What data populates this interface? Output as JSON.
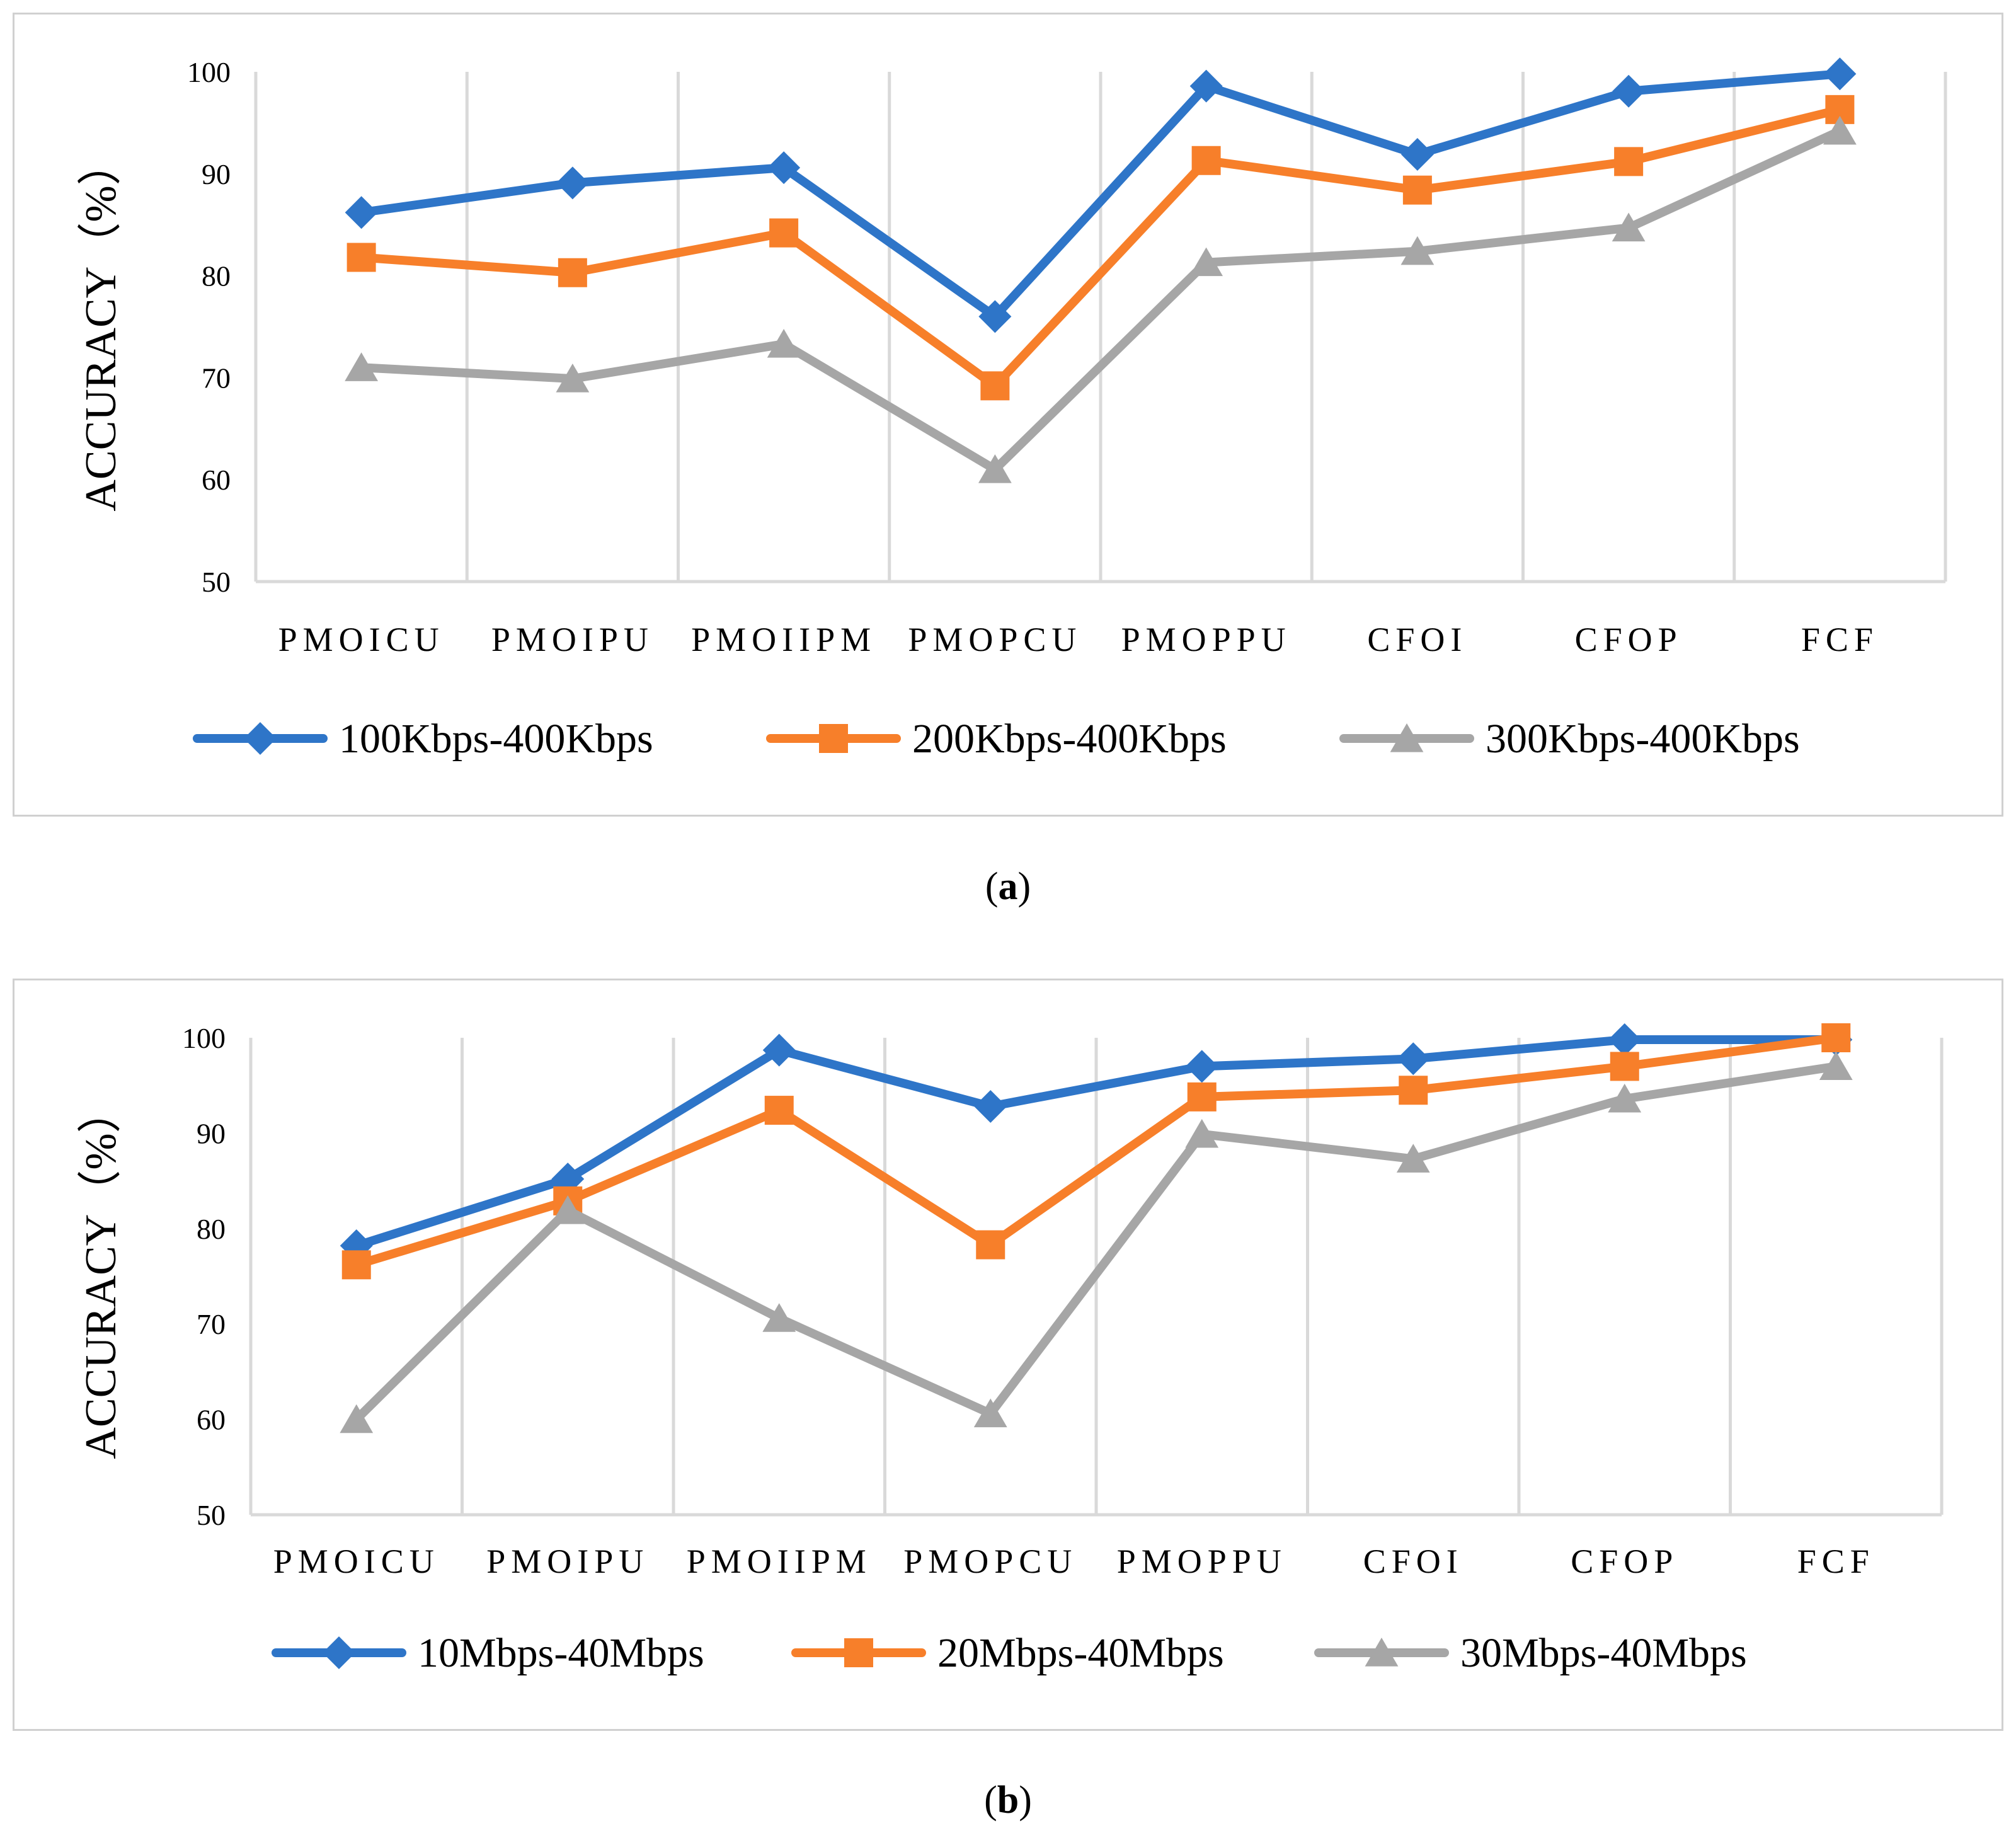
{
  "colors": {
    "series1": "#2e75c8",
    "series2": "#f77f2a",
    "series3": "#a6a6a6",
    "grid": "#d9d9d9",
    "text": "#000000"
  },
  "captions": {
    "a_letter": "a",
    "b_letter": "b"
  },
  "chart_data": [
    {
      "type": "line",
      "ylabel": "ACCURACY（%）",
      "ylim": [
        50,
        100
      ],
      "yticks": [
        "50",
        "60",
        "70",
        "80",
        "90",
        "100"
      ],
      "grid": "vertical",
      "legend_position": "bottom",
      "categories": [
        "PMOICU",
        "PMOIPU",
        "PMOIIPM",
        "PMOPCU",
        "PMOPPU",
        "CFOI",
        "CFOP",
        "FCF"
      ],
      "series": [
        {
          "name": "100Kbps-400Kbps",
          "marker": "diamond",
          "values": [
            86.2,
            89.1,
            90.6,
            76.0,
            98.6,
            91.9,
            98.1,
            99.8
          ]
        },
        {
          "name": "200Kbps-400Kbps",
          "marker": "square",
          "values": [
            81.8,
            80.3,
            84.2,
            69.2,
            91.3,
            88.4,
            91.2,
            96.3
          ]
        },
        {
          "name": "300Kbps-400Kbps",
          "marker": "triangle",
          "values": [
            71.0,
            69.9,
            73.3,
            61.0,
            81.3,
            82.4,
            84.7,
            94.2
          ]
        }
      ]
    },
    {
      "type": "line",
      "ylabel": "ACCURACY（%）",
      "ylim": [
        50,
        100
      ],
      "yticks": [
        "50",
        "60",
        "70",
        "80",
        "90",
        "100"
      ],
      "grid": "vertical",
      "legend_position": "bottom",
      "categories": [
        "PMOICU",
        "PMOIPU",
        "PMOIIPM",
        "PMOPCU",
        "PMOPPU",
        "CFOI",
        "CFOP",
        "FCF"
      ],
      "series": [
        {
          "name": "10Mbps-40Mbps",
          "marker": "diamond",
          "values": [
            78.2,
            85.2,
            98.7,
            92.8,
            97.0,
            97.8,
            99.8,
            99.8
          ]
        },
        {
          "name": "20Mbps-40Mbps",
          "marker": "square",
          "values": [
            76.2,
            82.9,
            92.4,
            78.3,
            93.8,
            94.5,
            97.0,
            100.0
          ]
        },
        {
          "name": "30Mbps-40Mbps",
          "marker": "triangle",
          "values": [
            60.0,
            81.9,
            70.6,
            60.6,
            89.9,
            87.3,
            93.6,
            97.0
          ]
        }
      ]
    }
  ]
}
